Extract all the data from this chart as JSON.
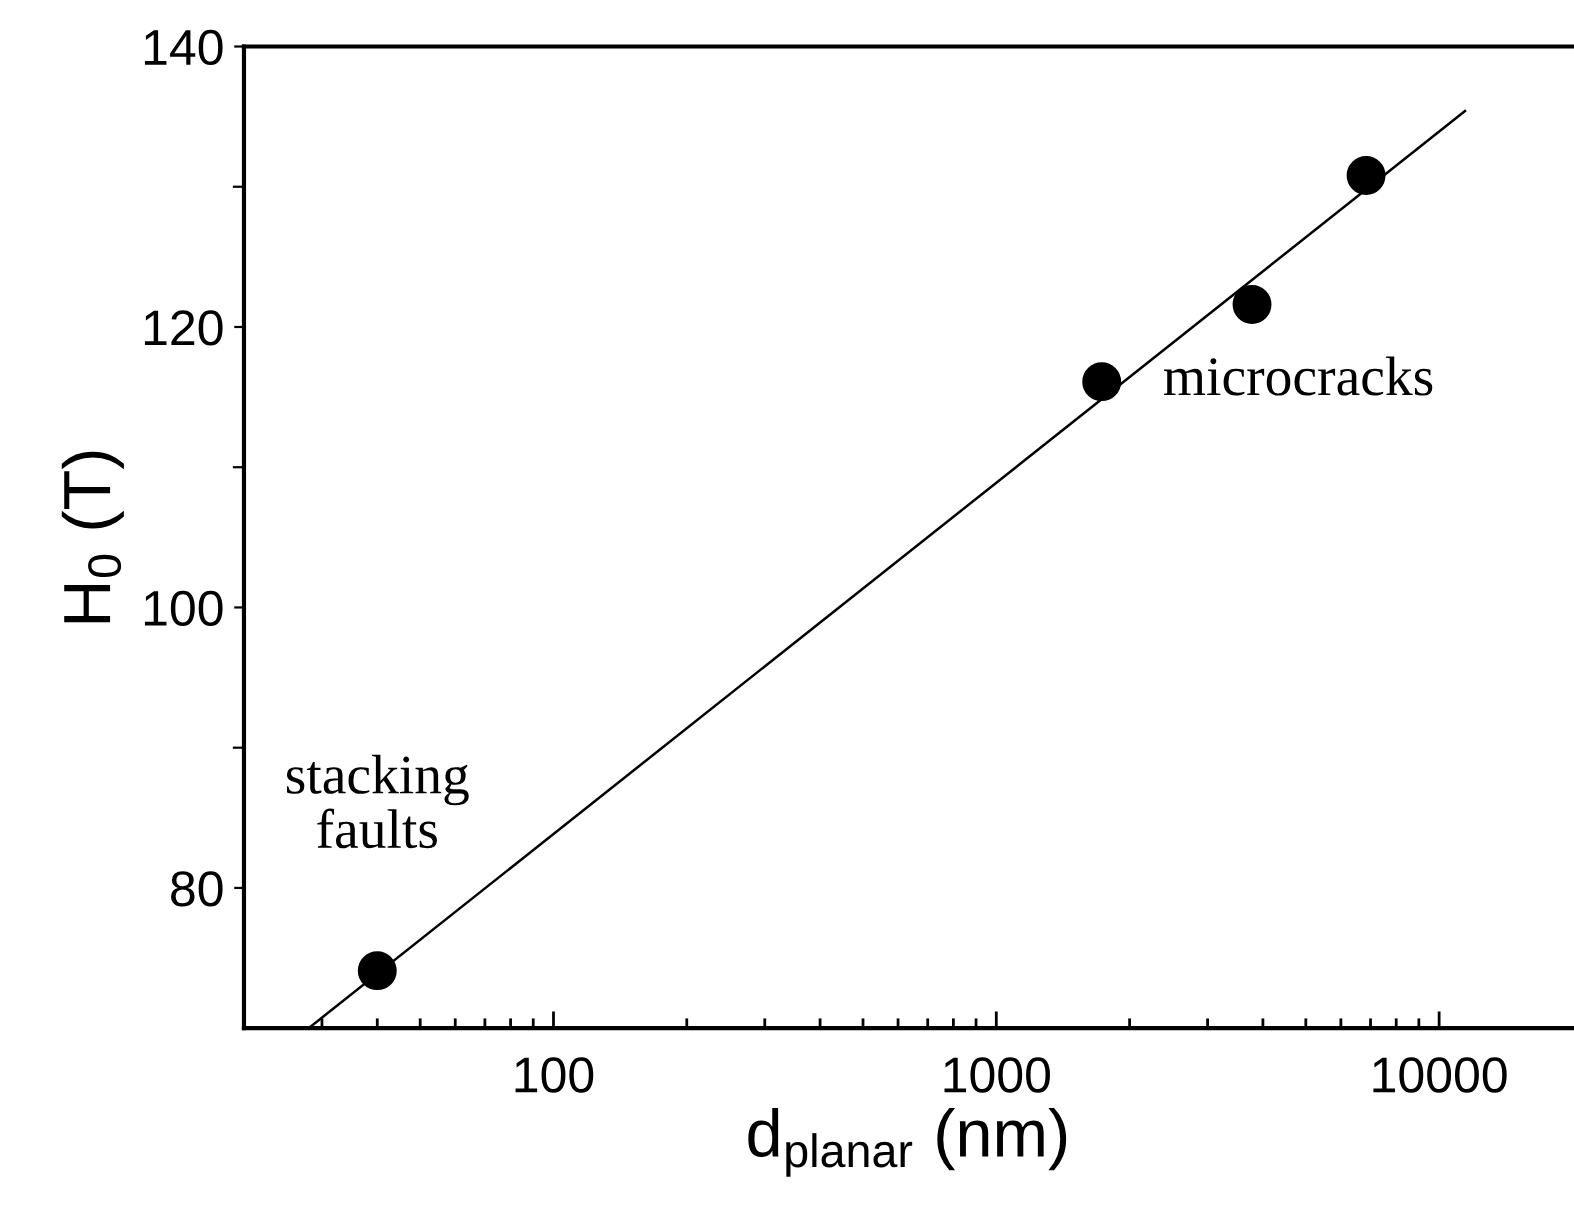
{
  "chart_data": {
    "type": "scatter",
    "xlabel": "d$_{planar}$ (nm)",
    "ylabel": "H$_{0}$ (T)",
    "log": "x",
    "xlim": [
      20,
      20000
    ],
    "ylim": [
      70,
      140
    ],
    "xticks": [
      {
        "value": 30,
        "label": null
      },
      {
        "value": 40,
        "label": null
      },
      {
        "value": 50,
        "label": null
      },
      {
        "value": 60,
        "label": null
      },
      {
        "value": 70,
        "label": null
      },
      {
        "value": 80,
        "label": null
      },
      {
        "value": 90,
        "label": null
      },
      100,
      {
        "value": 200,
        "label": null
      },
      {
        "value": 300,
        "label": null
      },
      {
        "value": 400,
        "label": null
      },
      {
        "value": 500,
        "label": null
      },
      {
        "value": 600,
        "label": null
      },
      {
        "value": 700,
        "label": null
      },
      {
        "value": 800,
        "label": null
      },
      {
        "value": 900,
        "label": null
      },
      1000,
      {
        "value": 2000,
        "label": null
      },
      {
        "value": 3000,
        "label": null
      },
      {
        "value": 4000,
        "label": null
      },
      {
        "value": 5000,
        "label": null
      },
      {
        "value": 6000,
        "label": null
      },
      {
        "value": 7000,
        "label": null
      },
      {
        "value": 8000,
        "label": null
      },
      {
        "value": 9000,
        "label": null
      },
      10000
    ],
    "yticks": [
      80,
      {
        "value": 90,
        "label": null
      },
      100,
      {
        "value": 110,
        "label": null
      },
      120,
      {
        "value": 130,
        "label": null
      },
      140
    ],
    "grid": false,
    "legend": false,
    "series": [
      {
        "color": "#000000",
        "marker": "circle",
        "x": [
          40,
          1730,
          3780,
          6840
        ],
        "values": [
          74.1,
          116.1,
          121.6,
          130.8
        ]
      },
      {
        "type": "line",
        "color": "#000000",
        "marker": "none",
        "line_style": "solid",
        "x": [
          28,
          11440
        ],
        "values": [
          70,
          135.4
        ]
      }
    ],
    "annotations": [
      {
        "text": "stacking\nfaults",
        "x": 40,
        "y": 74.1
      },
      {
        "text": "microcracks",
        "x": 1730,
        "y": 116.1
      }
    ]
  }
}
